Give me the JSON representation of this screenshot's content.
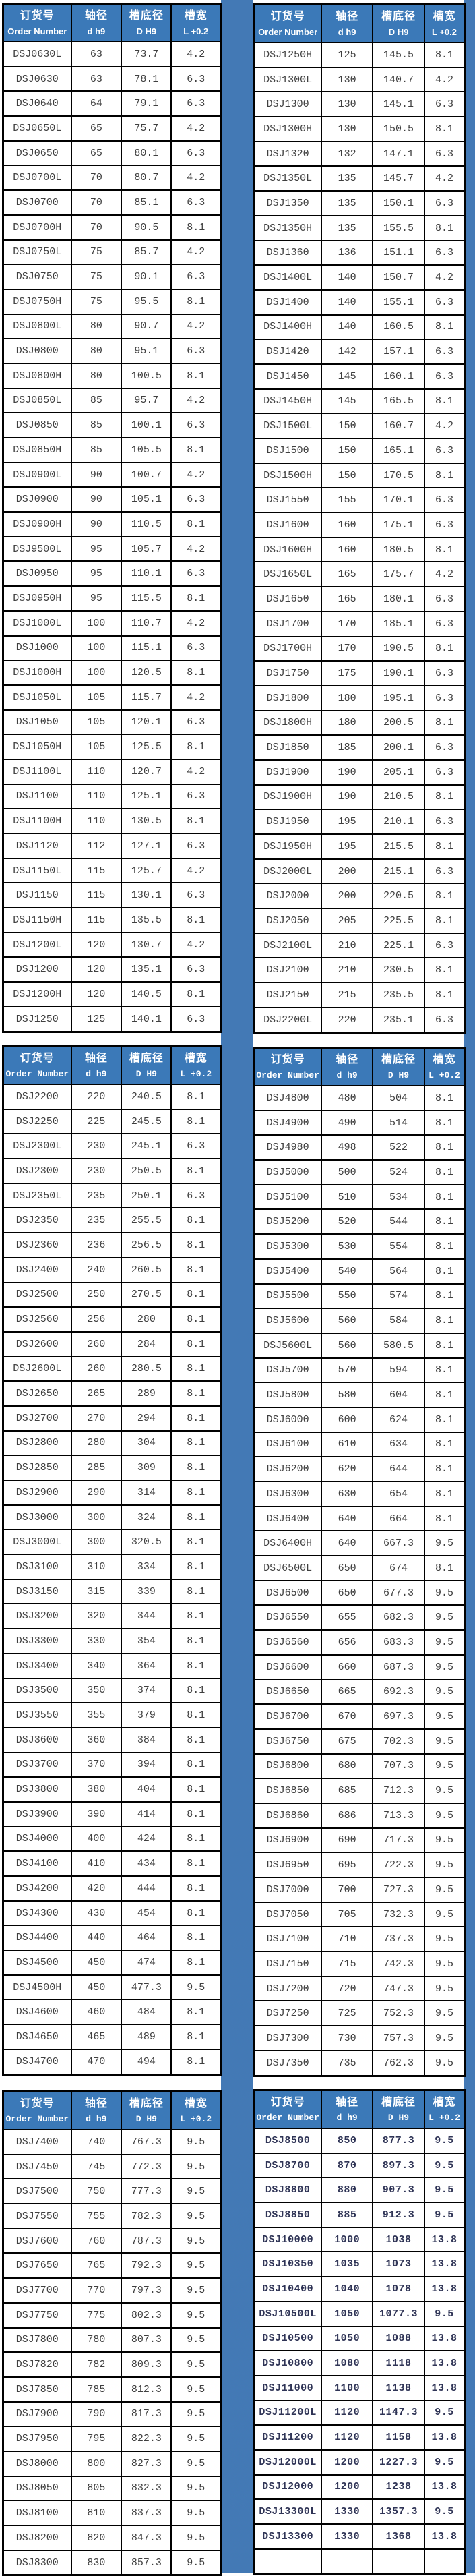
{
  "header": {
    "order_cn": "订货号",
    "order_en": "Order Number",
    "shaft_cn": "轴径",
    "shaft_en": "d h9",
    "groove_dia_cn": "槽底径",
    "groove_dia_en": "D H9",
    "groove_width_cn": "槽宽",
    "groove_width_en": "L +0.2"
  },
  "colors": {
    "header_blue": "#3b79b8",
    "page_strip_blue": "#4379b5",
    "border_black": "#000000"
  },
  "tables": [
    {
      "id": "spec-table-1",
      "rows": [
        [
          "DSJ0630L",
          "63",
          "73.7",
          "4.2"
        ],
        [
          "DSJ0630",
          "63",
          "78.1",
          "6.3"
        ],
        [
          "DSJ0640",
          "64",
          "79.1",
          "6.3"
        ],
        [
          "DSJ0650L",
          "65",
          "75.7",
          "4.2"
        ],
        [
          "DSJ0650",
          "65",
          "80.1",
          "6.3"
        ],
        [
          "DSJ0700L",
          "70",
          "80.7",
          "4.2"
        ],
        [
          "DSJ0700",
          "70",
          "85.1",
          "6.3"
        ],
        [
          "DSJ0700H",
          "70",
          "90.5",
          "8.1"
        ],
        [
          "DSJ0750L",
          "75",
          "85.7",
          "4.2"
        ],
        [
          "DSJ0750",
          "75",
          "90.1",
          "6.3"
        ],
        [
          "DSJ0750H",
          "75",
          "95.5",
          "8.1"
        ],
        [
          "DSJ0800L",
          "80",
          "90.7",
          "4.2"
        ],
        [
          "DSJ0800",
          "80",
          "95.1",
          "6.3"
        ],
        [
          "DSJ0800H",
          "80",
          "100.5",
          "8.1"
        ],
        [
          "DSJ0850L",
          "85",
          "95.7",
          "4.2"
        ],
        [
          "DSJ0850",
          "85",
          "100.1",
          "6.3"
        ],
        [
          "DSJ0850H",
          "85",
          "105.5",
          "8.1"
        ],
        [
          "DSJ0900L",
          "90",
          "100.7",
          "4.2"
        ],
        [
          "DSJ0900",
          "90",
          "105.1",
          "6.3"
        ],
        [
          "DSJ0900H",
          "90",
          "110.5",
          "8.1"
        ],
        [
          "DSJ9500L",
          "95",
          "105.7",
          "4.2"
        ],
        [
          "DSJ0950",
          "95",
          "110.1",
          "6.3"
        ],
        [
          "DSJ0950H",
          "95",
          "115.5",
          "8.1"
        ],
        [
          "DSJ1000L",
          "100",
          "110.7",
          "4.2"
        ],
        [
          "DSJ1000",
          "100",
          "115.1",
          "6.3"
        ],
        [
          "DSJ1000H",
          "100",
          "120.5",
          "8.1"
        ],
        [
          "DSJ1050L",
          "105",
          "115.7",
          "4.2"
        ],
        [
          "DSJ1050",
          "105",
          "120.1",
          "6.3"
        ],
        [
          "DSJ1050H",
          "105",
          "125.5",
          "8.1"
        ],
        [
          "DSJ1100L",
          "110",
          "120.7",
          "4.2"
        ],
        [
          "DSJ1100",
          "110",
          "125.1",
          "6.3"
        ],
        [
          "DSJ1100H",
          "110",
          "130.5",
          "8.1"
        ],
        [
          "DSJ1120",
          "112",
          "127.1",
          "6.3"
        ],
        [
          "DSJ1150L",
          "115",
          "125.7",
          "4.2"
        ],
        [
          "DSJ1150",
          "115",
          "130.1",
          "6.3"
        ],
        [
          "DSJ1150H",
          "115",
          "135.5",
          "8.1"
        ],
        [
          "DSJ1200L",
          "120",
          "130.7",
          "4.2"
        ],
        [
          "DSJ1200",
          "120",
          "135.1",
          "6.3"
        ],
        [
          "DSJ1200H",
          "120",
          "140.5",
          "8.1"
        ],
        [
          "DSJ1250",
          "125",
          "140.1",
          "6.3"
        ]
      ]
    },
    {
      "id": "spec-table-2",
      "rows": [
        [
          "DSJ1250H",
          "125",
          "145.5",
          "8.1"
        ],
        [
          "DSJ1300L",
          "130",
          "140.7",
          "4.2"
        ],
        [
          "DSJ1300",
          "130",
          "145.1",
          "6.3"
        ],
        [
          "DSJ1300H",
          "130",
          "150.5",
          "8.1"
        ],
        [
          "DSJ1320",
          "132",
          "147.1",
          "6.3"
        ],
        [
          "DSJ1350L",
          "135",
          "145.7",
          "4.2"
        ],
        [
          "DSJ1350",
          "135",
          "150.1",
          "6.3"
        ],
        [
          "DSJ1350H",
          "135",
          "155.5",
          "8.1"
        ],
        [
          "DSJ1360",
          "136",
          "151.1",
          "6.3"
        ],
        [
          "DSJ1400L",
          "140",
          "150.7",
          "4.2"
        ],
        [
          "DSJ1400",
          "140",
          "155.1",
          "6.3"
        ],
        [
          "DSJ1400H",
          "140",
          "160.5",
          "8.1"
        ],
        [
          "DSJ1420",
          "142",
          "157.1",
          "6.3"
        ],
        [
          "DSJ1450",
          "145",
          "160.1",
          "6.3"
        ],
        [
          "DSJ1450H",
          "145",
          "165.5",
          "8.1"
        ],
        [
          "DSJ1500L",
          "150",
          "160.7",
          "4.2"
        ],
        [
          "DSJ1500",
          "150",
          "165.1",
          "6.3"
        ],
        [
          "DSJ1500H",
          "150",
          "170.5",
          "8.1"
        ],
        [
          "DSJ1550",
          "155",
          "170.1",
          "6.3"
        ],
        [
          "DSJ1600",
          "160",
          "175.1",
          "6.3"
        ],
        [
          "DSJ1600H",
          "160",
          "180.5",
          "8.1"
        ],
        [
          "DSJ1650L",
          "165",
          "175.7",
          "4.2"
        ],
        [
          "DSJ1650",
          "165",
          "180.1",
          "6.3"
        ],
        [
          "DSJ1700",
          "170",
          "185.1",
          "6.3"
        ],
        [
          "DSJ1700H",
          "170",
          "190.5",
          "8.1"
        ],
        [
          "DSJ1750",
          "175",
          "190.1",
          "6.3"
        ],
        [
          "DSJ1800",
          "180",
          "195.1",
          "6.3"
        ],
        [
          "DSJ1800H",
          "180",
          "200.5",
          "8.1"
        ],
        [
          "DSJ1850",
          "185",
          "200.1",
          "6.3"
        ],
        [
          "DSJ1900",
          "190",
          "205.1",
          "6.3"
        ],
        [
          "DSJ1900H",
          "190",
          "210.5",
          "8.1"
        ],
        [
          "DSJ1950",
          "195",
          "210.1",
          "6.3"
        ],
        [
          "DSJ1950H",
          "195",
          "215.5",
          "8.1"
        ],
        [
          "DSJ2000L",
          "200",
          "215.1",
          "6.3"
        ],
        [
          "DSJ2000",
          "200",
          "220.5",
          "8.1"
        ],
        [
          "DSJ2050",
          "205",
          "225.5",
          "8.1"
        ],
        [
          "DSJ2100L",
          "210",
          "225.1",
          "6.3"
        ],
        [
          "DSJ2100",
          "210",
          "230.5",
          "8.1"
        ],
        [
          "DSJ2150",
          "215",
          "235.5",
          "8.1"
        ],
        [
          "DSJ2200L",
          "220",
          "235.1",
          "6.3"
        ]
      ]
    },
    {
      "id": "spec-table-3",
      "rows": [
        [
          "DSJ2200",
          "220",
          "240.5",
          "8.1"
        ],
        [
          "DSJ2250",
          "225",
          "245.5",
          "8.1"
        ],
        [
          "DSJ2300L",
          "230",
          "245.1",
          "6.3"
        ],
        [
          "DSJ2300",
          "230",
          "250.5",
          "8.1"
        ],
        [
          "DSJ2350L",
          "235",
          "250.1",
          "6.3"
        ],
        [
          "DSJ2350",
          "235",
          "255.5",
          "8.1"
        ],
        [
          "DSJ2360",
          "236",
          "256.5",
          "8.1"
        ],
        [
          "DSJ2400",
          "240",
          "260.5",
          "8.1"
        ],
        [
          "DSJ2500",
          "250",
          "270.5",
          "8.1"
        ],
        [
          "DSJ2560",
          "256",
          "280",
          "8.1"
        ],
        [
          "DSJ2600",
          "260",
          "284",
          "8.1"
        ],
        [
          "DSJ2600L",
          "260",
          "280.5",
          "8.1"
        ],
        [
          "DSJ2650",
          "265",
          "289",
          "8.1"
        ],
        [
          "DSJ2700",
          "270",
          "294",
          "8.1"
        ],
        [
          "DSJ2800",
          "280",
          "304",
          "8.1"
        ],
        [
          "DSJ2850",
          "285",
          "309",
          "8.1"
        ],
        [
          "DSJ2900",
          "290",
          "314",
          "8.1"
        ],
        [
          "DSJ3000",
          "300",
          "324",
          "8.1"
        ],
        [
          "DSJ3000L",
          "300",
          "320.5",
          "8.1"
        ],
        [
          "DSJ3100",
          "310",
          "334",
          "8.1"
        ],
        [
          "DSJ3150",
          "315",
          "339",
          "8.1"
        ],
        [
          "DSJ3200",
          "320",
          "344",
          "8.1"
        ],
        [
          "DSJ3300",
          "330",
          "354",
          "8.1"
        ],
        [
          "DSJ3400",
          "340",
          "364",
          "8.1"
        ],
        [
          "DSJ3500",
          "350",
          "374",
          "8.1"
        ],
        [
          "DSJ3550",
          "355",
          "379",
          "8.1"
        ],
        [
          "DSJ3600",
          "360",
          "384",
          "8.1"
        ],
        [
          "DSJ3700",
          "370",
          "394",
          "8.1"
        ],
        [
          "DSJ3800",
          "380",
          "404",
          "8.1"
        ],
        [
          "DSJ3900",
          "390",
          "414",
          "8.1"
        ],
        [
          "DSJ4000",
          "400",
          "424",
          "8.1"
        ],
        [
          "DSJ4100",
          "410",
          "434",
          "8.1"
        ],
        [
          "DSJ4200",
          "420",
          "444",
          "8.1"
        ],
        [
          "DSJ4300",
          "430",
          "454",
          "8.1"
        ],
        [
          "DSJ4400",
          "440",
          "464",
          "8.1"
        ],
        [
          "DSJ4500",
          "450",
          "474",
          "8.1"
        ],
        [
          "DSJ4500H",
          "450",
          "477.3",
          "9.5"
        ],
        [
          "DSJ4600",
          "460",
          "484",
          "8.1"
        ],
        [
          "DSJ4650",
          "465",
          "489",
          "8.1"
        ],
        [
          "DSJ4700",
          "470",
          "494",
          "8.1"
        ]
      ]
    },
    {
      "id": "spec-table-4",
      "rows": [
        [
          "DSJ4800",
          "480",
          "504",
          "8.1"
        ],
        [
          "DSJ4900",
          "490",
          "514",
          "8.1"
        ],
        [
          "DSJ4980",
          "498",
          "522",
          "8.1"
        ],
        [
          "DSJ5000",
          "500",
          "524",
          "8.1"
        ],
        [
          "DSJ5100",
          "510",
          "534",
          "8.1"
        ],
        [
          "DSJ5200",
          "520",
          "544",
          "8.1"
        ],
        [
          "DSJ5300",
          "530",
          "554",
          "8.1"
        ],
        [
          "DSJ5400",
          "540",
          "564",
          "8.1"
        ],
        [
          "DSJ5500",
          "550",
          "574",
          "8.1"
        ],
        [
          "DSJ5600",
          "560",
          "584",
          "8.1"
        ],
        [
          "DSJ5600L",
          "560",
          "580.5",
          "8.1"
        ],
        [
          "DSJ5700",
          "570",
          "594",
          "8.1"
        ],
        [
          "DSJ5800",
          "580",
          "604",
          "8.1"
        ],
        [
          "DSJ6000",
          "600",
          "624",
          "8.1"
        ],
        [
          "DSJ6100",
          "610",
          "634",
          "8.1"
        ],
        [
          "DSJ6200",
          "620",
          "644",
          "8.1"
        ],
        [
          "DSJ6300",
          "630",
          "654",
          "8.1"
        ],
        [
          "DSJ6400",
          "640",
          "664",
          "8.1"
        ],
        [
          "DSJ6400H",
          "640",
          "667.3",
          "9.5"
        ],
        [
          "DSJ6500L",
          "650",
          "674",
          "8.1"
        ],
        [
          "DSJ6500",
          "650",
          "677.3",
          "9.5"
        ],
        [
          "DSJ6550",
          "655",
          "682.3",
          "9.5"
        ],
        [
          "DSJ6560",
          "656",
          "683.3",
          "9.5"
        ],
        [
          "DSJ6600",
          "660",
          "687.3",
          "9.5"
        ],
        [
          "DSJ6650",
          "665",
          "692.3",
          "9.5"
        ],
        [
          "DSJ6700",
          "670",
          "697.3",
          "9.5"
        ],
        [
          "DSJ6750",
          "675",
          "702.3",
          "9.5"
        ],
        [
          "DSJ6800",
          "680",
          "707.3",
          "9.5"
        ],
        [
          "DSJ6850",
          "685",
          "712.3",
          "9.5"
        ],
        [
          "DSJ6860",
          "686",
          "713.3",
          "9.5"
        ],
        [
          "DSJ6900",
          "690",
          "717.3",
          "9.5"
        ],
        [
          "DSJ6950",
          "695",
          "722.3",
          "9.5"
        ],
        [
          "DSJ7000",
          "700",
          "727.3",
          "9.5"
        ],
        [
          "DSJ7050",
          "705",
          "732.3",
          "9.5"
        ],
        [
          "DSJ7100",
          "710",
          "737.3",
          "9.5"
        ],
        [
          "DSJ7150",
          "715",
          "742.3",
          "9.5"
        ],
        [
          "DSJ7200",
          "720",
          "747.3",
          "9.5"
        ],
        [
          "DSJ7250",
          "725",
          "752.3",
          "9.5"
        ],
        [
          "DSJ7300",
          "730",
          "757.3",
          "9.5"
        ],
        [
          "DSJ7350",
          "735",
          "762.3",
          "9.5"
        ]
      ]
    },
    {
      "id": "spec-table-5",
      "rows": [
        [
          "DSJ7400",
          "740",
          "767.3",
          "9.5"
        ],
        [
          "DSJ7450",
          "745",
          "772.3",
          "9.5"
        ],
        [
          "DSJ7500",
          "750",
          "777.3",
          "9.5"
        ],
        [
          "DSJ7550",
          "755",
          "782.3",
          "9.5"
        ],
        [
          "DSJ7600",
          "760",
          "787.3",
          "9.5"
        ],
        [
          "DSJ7650",
          "765",
          "792.3",
          "9.5"
        ],
        [
          "DSJ7700",
          "770",
          "797.3",
          "9.5"
        ],
        [
          "DSJ7750",
          "775",
          "802.3",
          "9.5"
        ],
        [
          "DSJ7800",
          "780",
          "807.3",
          "9.5"
        ],
        [
          "DSJ7820",
          "782",
          "809.3",
          "9.5"
        ],
        [
          "DSJ7850",
          "785",
          "812.3",
          "9.5"
        ],
        [
          "DSJ7900",
          "790",
          "817.3",
          "9.5"
        ],
        [
          "DSJ7950",
          "795",
          "822.3",
          "9.5"
        ],
        [
          "DSJ8000",
          "800",
          "827.3",
          "9.5"
        ],
        [
          "DSJ8050",
          "805",
          "832.3",
          "9.5"
        ],
        [
          "DSJ8100",
          "810",
          "837.3",
          "9.5"
        ],
        [
          "DSJ8200",
          "820",
          "847.3",
          "9.5"
        ],
        [
          "DSJ8300",
          "830",
          "857.3",
          "9.5"
        ]
      ]
    },
    {
      "id": "spec-table-6",
      "rows": [
        [
          "DSJ8500",
          "850",
          "877.3",
          "9.5"
        ],
        [
          "DSJ8700",
          "870",
          "897.3",
          "9.5"
        ],
        [
          "DSJ8800",
          "880",
          "907.3",
          "9.5"
        ],
        [
          "DSJ8850",
          "885",
          "912.3",
          "9.5"
        ],
        [
          "DSJ10000",
          "1000",
          "1038",
          "13.8"
        ],
        [
          "DSJ10350",
          "1035",
          "1073",
          "13.8"
        ],
        [
          "DSJ10400",
          "1040",
          "1078",
          "13.8"
        ],
        [
          "DSJ10500L",
          "1050",
          "1077.3",
          "9.5"
        ],
        [
          "DSJ10500",
          "1050",
          "1088",
          "13.8"
        ],
        [
          "DSJ10800",
          "1080",
          "1118",
          "13.8"
        ],
        [
          "DSJ11000",
          "1100",
          "1138",
          "13.8"
        ],
        [
          "DSJ11200L",
          "1120",
          "1147.3",
          "9.5"
        ],
        [
          "DSJ11200",
          "1120",
          "1158",
          "13.8"
        ],
        [
          "DSJ12000L",
          "1200",
          "1227.3",
          "9.5"
        ],
        [
          "DSJ12000",
          "1200",
          "1238",
          "13.8"
        ],
        [
          "DSJ13300L",
          "1330",
          "1357.3",
          "9.5"
        ],
        [
          "DSJ13300",
          "1330",
          "1368",
          "13.8"
        ],
        [
          "",
          "",
          "",
          ""
        ]
      ]
    }
  ]
}
